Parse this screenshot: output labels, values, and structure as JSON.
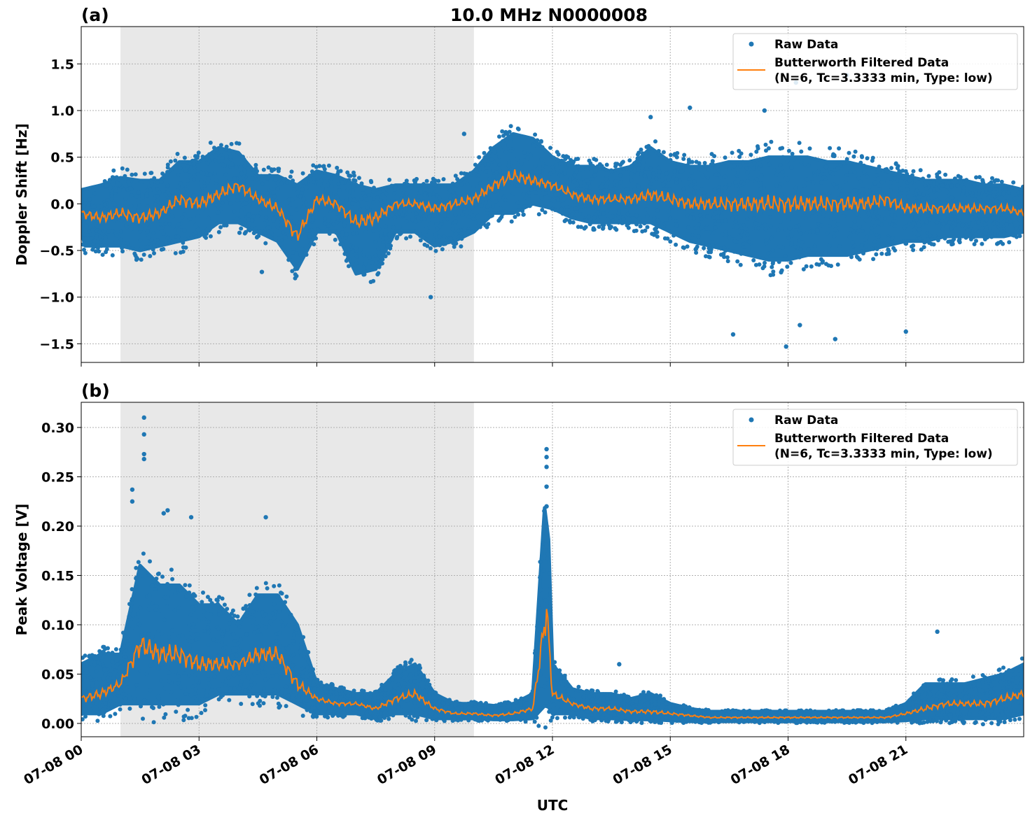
{
  "title": "10.0 MHz N0000008",
  "xlabel": "UTC",
  "date": "07-08",
  "x_tick_labels": [
    "07-08 00",
    "07-08 03",
    "07-08 06",
    "07-08 09",
    "07-08 12",
    "07-08 15",
    "07-08 18",
    "07-08 21"
  ],
  "x_range": [
    "07-08 00:00",
    "07-08 24:00"
  ],
  "shaded_interval": [
    "07-08 01:00",
    "07-08 10:00"
  ],
  "colors": {
    "raw": "#1f77b4",
    "filtered": "#ff7f0e",
    "shade": "#e8e8e8"
  },
  "legend": {
    "raw": "Raw Data",
    "filtered_line1": "Butterworth Filtered Data",
    "filtered_line2": "(N=6, Tc=3.3333 min, Type: low)",
    "placement": "upper right"
  },
  "chart_data": [
    {
      "panel_label": "(a)",
      "type": "scatter+line",
      "ylabel": "Doppler Shift [Hz]",
      "ylim": [
        -1.7,
        1.9
      ],
      "y_ticks": [
        -1.5,
        -1.0,
        -0.5,
        0.0,
        0.5,
        1.0,
        1.5
      ],
      "y_tick_labels": [
        "−1.5",
        "−1.0",
        "−0.5",
        "0.0",
        "0.5",
        "1.0",
        "1.5"
      ],
      "grid": true,
      "time": [
        "00:00",
        "00:30",
        "01:00",
        "01:30",
        "02:00",
        "02:30",
        "03:00",
        "03:30",
        "04:00",
        "04:30",
        "05:00",
        "05:30",
        "06:00",
        "06:30",
        "07:00",
        "07:30",
        "08:00",
        "08:30",
        "09:00",
        "09:30",
        "10:00",
        "10:30",
        "11:00",
        "11:30",
        "12:00",
        "12:30",
        "13:00",
        "13:30",
        "14:00",
        "14:30",
        "15:00",
        "15:30",
        "16:00",
        "16:30",
        "17:00",
        "17:30",
        "18:00",
        "18:30",
        "19:00",
        "19:30",
        "20:00",
        "20:30",
        "21:00",
        "21:30",
        "22:00",
        "22:30",
        "23:00",
        "23:30",
        "24:00"
      ],
      "filtered": [
        -0.1,
        -0.15,
        -0.1,
        -0.15,
        -0.1,
        0.05,
        0.0,
        0.1,
        0.2,
        0.05,
        -0.05,
        -0.35,
        0.05,
        0.0,
        -0.2,
        -0.15,
        0.0,
        0.0,
        -0.05,
        0.0,
        0.05,
        0.2,
        0.3,
        0.25,
        0.2,
        0.1,
        0.05,
        0.05,
        0.05,
        0.1,
        0.05,
        0.0,
        0.0,
        0.0,
        0.0,
        0.0,
        0.0,
        0.0,
        0.0,
        0.0,
        0.0,
        0.05,
        -0.05,
        -0.05,
        -0.05,
        -0.05,
        -0.05,
        -0.05,
        -0.1
      ],
      "raw_min": [
        -0.45,
        -0.45,
        -0.45,
        -0.5,
        -0.45,
        -0.4,
        -0.35,
        -0.2,
        -0.2,
        -0.3,
        -0.4,
        -0.7,
        -0.3,
        -0.3,
        -0.75,
        -0.7,
        -0.3,
        -0.3,
        -0.45,
        -0.4,
        -0.3,
        -0.1,
        -0.1,
        0.0,
        -0.05,
        -0.15,
        -0.2,
        -0.2,
        -0.2,
        -0.2,
        -0.3,
        -0.4,
        -0.45,
        -0.5,
        -0.55,
        -0.6,
        -0.6,
        -0.55,
        -0.55,
        -0.55,
        -0.5,
        -0.45,
        -0.4,
        -0.4,
        -0.35,
        -0.35,
        -0.35,
        -0.35,
        -0.3
      ],
      "raw_max": [
        0.15,
        0.2,
        0.28,
        0.25,
        0.25,
        0.45,
        0.45,
        0.6,
        0.55,
        0.3,
        0.3,
        0.2,
        0.35,
        0.3,
        0.2,
        0.15,
        0.2,
        0.2,
        0.2,
        0.2,
        0.35,
        0.6,
        0.75,
        0.7,
        0.5,
        0.4,
        0.4,
        0.35,
        0.4,
        0.6,
        0.45,
        0.4,
        0.4,
        0.45,
        0.45,
        0.5,
        0.5,
        0.5,
        0.45,
        0.45,
        0.4,
        0.35,
        0.3,
        0.25,
        0.25,
        0.25,
        0.2,
        0.2,
        0.15
      ],
      "raw_outliers": [
        [
          "04:36",
          -0.73
        ],
        [
          "08:54",
          -1.0
        ],
        [
          "15:30",
          1.03
        ],
        [
          "16:36",
          -1.4
        ],
        [
          "17:57",
          -1.53
        ],
        [
          "18:12",
          1.3
        ],
        [
          "18:18",
          -1.3
        ],
        [
          "19:12",
          -1.45
        ],
        [
          "19:30",
          1.38
        ],
        [
          "21:00",
          -1.37
        ],
        [
          "09:45",
          0.75
        ],
        [
          "14:30",
          0.93
        ],
        [
          "17:24",
          1.0
        ]
      ]
    },
    {
      "panel_label": "(b)",
      "type": "scatter+line",
      "ylabel": "Peak Voltage [V]",
      "ylim": [
        -0.0135,
        0.3255
      ],
      "y_ticks": [
        0.0,
        0.05,
        0.1,
        0.15,
        0.2,
        0.25,
        0.3
      ],
      "y_tick_labels": [
        "0.00",
        "0.05",
        "0.10",
        "0.15",
        "0.20",
        "0.25",
        "0.30"
      ],
      "grid": true,
      "time": [
        "00:00",
        "00:30",
        "01:00",
        "01:30",
        "02:00",
        "02:30",
        "03:00",
        "03:30",
        "04:00",
        "04:30",
        "05:00",
        "05:30",
        "06:00",
        "06:30",
        "07:00",
        "07:30",
        "08:00",
        "08:30",
        "09:00",
        "09:30",
        "10:00",
        "10:30",
        "11:00",
        "11:30",
        "11:51",
        "12:00",
        "12:30",
        "13:00",
        "13:30",
        "14:00",
        "14:30",
        "15:00",
        "15:30",
        "16:00",
        "16:30",
        "17:00",
        "17:30",
        "18:00",
        "18:30",
        "19:00",
        "19:30",
        "20:00",
        "20:30",
        "21:00",
        "21:30",
        "22:00",
        "22:30",
        "23:00",
        "23:30",
        "24:00"
      ],
      "filtered": [
        0.025,
        0.03,
        0.04,
        0.08,
        0.07,
        0.07,
        0.06,
        0.06,
        0.06,
        0.07,
        0.07,
        0.04,
        0.025,
        0.02,
        0.02,
        0.015,
        0.025,
        0.03,
        0.015,
        0.01,
        0.01,
        0.008,
        0.01,
        0.015,
        0.115,
        0.03,
        0.02,
        0.015,
        0.015,
        0.012,
        0.012,
        0.01,
        0.008,
        0.006,
        0.006,
        0.006,
        0.006,
        0.006,
        0.006,
        0.006,
        0.006,
        0.006,
        0.006,
        0.01,
        0.015,
        0.02,
        0.02,
        0.02,
        0.025,
        0.03
      ],
      "raw_min": [
        0.01,
        0.01,
        0.02,
        0.02,
        0.02,
        0.02,
        0.02,
        0.03,
        0.03,
        0.03,
        0.03,
        0.02,
        0.01,
        0.01,
        0.01,
        0.005,
        0.01,
        0.01,
        0.005,
        0.005,
        0.005,
        0.004,
        0.004,
        0.005,
        0.02,
        0.01,
        0.01,
        0.005,
        0.005,
        0.004,
        0.004,
        0.003,
        0.002,
        0.002,
        0.002,
        0.002,
        0.002,
        0.002,
        0.002,
        0.002,
        0.002,
        0.002,
        0.002,
        0.003,
        0.005,
        0.005,
        0.005,
        0.005,
        0.005,
        0.01
      ],
      "raw_max": [
        0.06,
        0.07,
        0.07,
        0.16,
        0.14,
        0.14,
        0.12,
        0.12,
        0.1,
        0.13,
        0.13,
        0.1,
        0.04,
        0.035,
        0.03,
        0.03,
        0.05,
        0.06,
        0.03,
        0.02,
        0.02,
        0.018,
        0.02,
        0.03,
        0.25,
        0.06,
        0.035,
        0.03,
        0.03,
        0.025,
        0.03,
        0.02,
        0.015,
        0.012,
        0.012,
        0.012,
        0.012,
        0.012,
        0.012,
        0.012,
        0.012,
        0.012,
        0.012,
        0.02,
        0.04,
        0.04,
        0.04,
        0.045,
        0.05,
        0.06
      ],
      "raw_outliers": [
        [
          "01:36",
          0.31
        ],
        [
          "01:36",
          0.293
        ],
        [
          "01:36",
          0.273
        ],
        [
          "01:36",
          0.268
        ],
        [
          "01:18",
          0.237
        ],
        [
          "01:18",
          0.225
        ],
        [
          "02:06",
          0.213
        ],
        [
          "02:12",
          0.216
        ],
        [
          "02:48",
          0.209
        ],
        [
          "04:42",
          0.209
        ],
        [
          "11:51",
          0.278
        ],
        [
          "11:51",
          0.27
        ],
        [
          "11:51",
          0.26
        ],
        [
          "11:51",
          0.24
        ],
        [
          "11:51",
          0.22
        ],
        [
          "11:51",
          0.2
        ],
        [
          "11:51",
          0.18
        ],
        [
          "21:48",
          0.093
        ],
        [
          "13:42",
          0.06
        ]
      ]
    }
  ]
}
